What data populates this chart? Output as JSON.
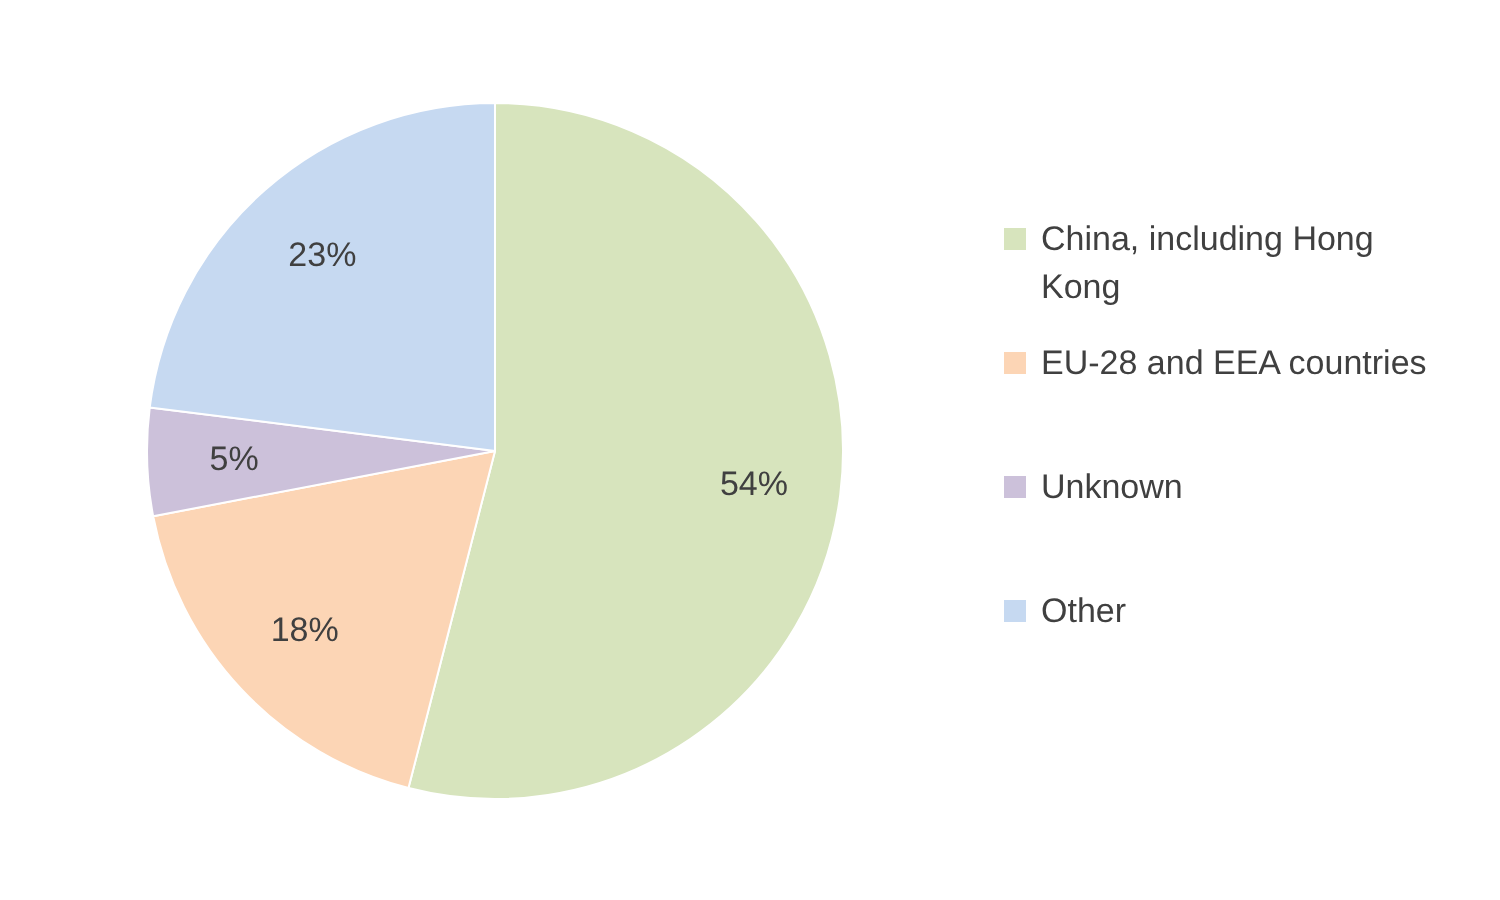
{
  "chart_data": {
    "type": "pie",
    "categories": [
      "China, including Hong Kong",
      "EU-28 and EEA countries",
      "Unknown",
      "Other"
    ],
    "values": [
      54,
      18,
      5,
      23
    ],
    "colors": [
      "#d7e4bd",
      "#fcd5b5",
      "#ccc1da",
      "#c6d9f1"
    ],
    "value_labels": [
      "54%",
      "18%",
      "5%",
      "23%"
    ],
    "legend": "right"
  }
}
